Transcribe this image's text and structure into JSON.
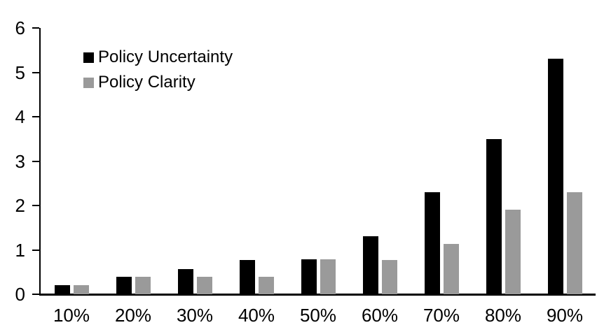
{
  "chart_data": {
    "type": "bar",
    "title": "",
    "xlabel": "",
    "ylabel": "",
    "categories": [
      "10%",
      "20%",
      "30%",
      "40%",
      "50%",
      "60%",
      "70%",
      "80%",
      "90%"
    ],
    "series": [
      {
        "name": "Policy Uncertainty",
        "color": "#000000",
        "values": [
          0.2,
          0.4,
          0.57,
          0.77,
          0.78,
          1.3,
          2.3,
          3.5,
          5.3
        ]
      },
      {
        "name": "Policy Clarity",
        "color": "#9a9a9a",
        "values": [
          0.2,
          0.4,
          0.4,
          0.4,
          0.78,
          0.77,
          1.13,
          1.9,
          2.3
        ]
      }
    ],
    "ylim": [
      0,
      6
    ],
    "yticks": [
      0,
      1,
      2,
      3,
      4,
      5,
      6
    ],
    "grid": false,
    "legend_position": "top-left",
    "axis_color": "#000000",
    "background_color": "#ffffff"
  }
}
